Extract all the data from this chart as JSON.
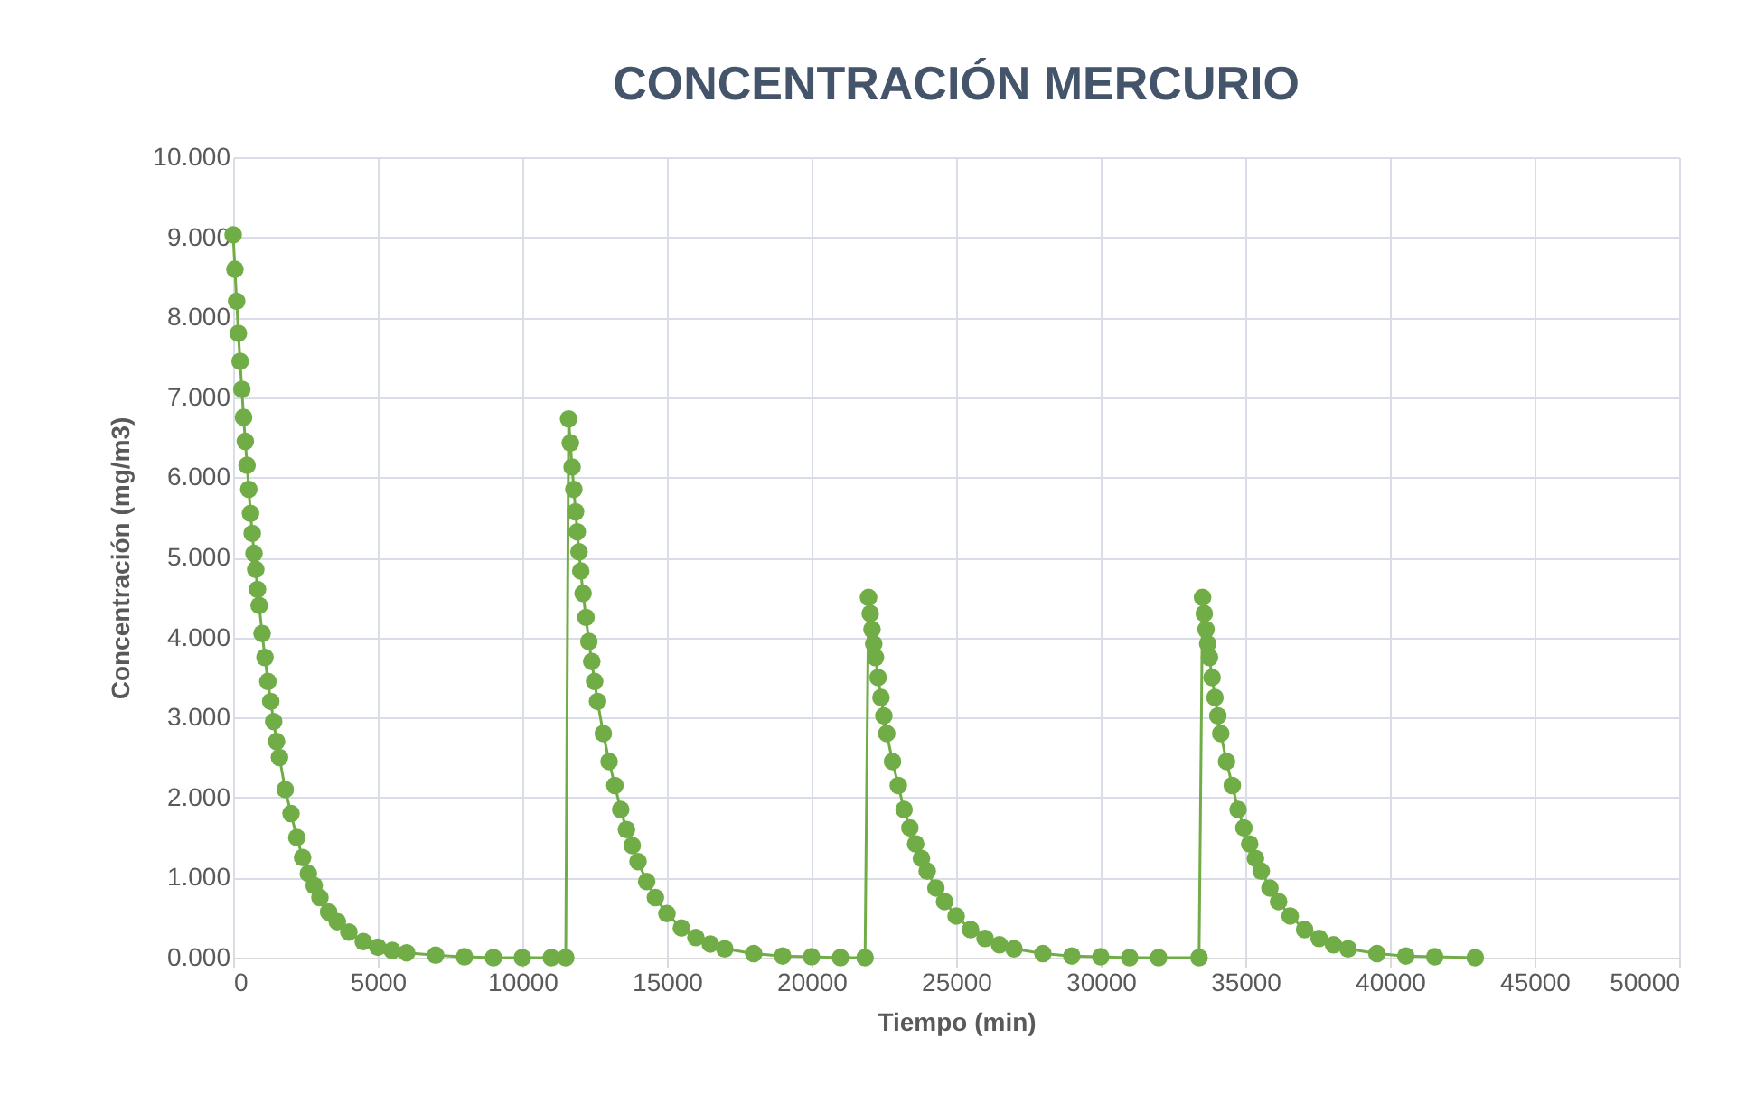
{
  "chart_data": {
    "type": "line",
    "title": "CONCENTRACIÓN MERCURIO",
    "xlabel": "Tiempo (min)",
    "ylabel": "Concentración (mg/m3)",
    "xlim": [
      0,
      50000
    ],
    "xticks": [
      0,
      5000,
      10000,
      15000,
      20000,
      25000,
      30000,
      35000,
      40000,
      45000,
      50000
    ],
    "ylim": [
      0,
      10
    ],
    "yticks": [
      {
        "value": 0,
        "label": "0.000"
      },
      {
        "value": 1,
        "label": "1.000"
      },
      {
        "value": 2,
        "label": "2.000"
      },
      {
        "value": 3,
        "label": "3.000"
      },
      {
        "value": 4,
        "label": "4.000"
      },
      {
        "value": 5,
        "label": "5.000"
      },
      {
        "value": 6,
        "label": "6.000"
      },
      {
        "value": 7,
        "label": "7.000"
      },
      {
        "value": 8,
        "label": "8.000"
      },
      {
        "value": 9,
        "label": "9.000"
      },
      {
        "value": 10,
        "label": "10.000"
      }
    ],
    "grid": true,
    "marker": "circle",
    "line_style": "solid",
    "x": [
      0,
      60,
      120,
      180,
      240,
      300,
      360,
      420,
      480,
      540,
      600,
      660,
      720,
      780,
      840,
      900,
      1000,
      1100,
      1200,
      1300,
      1400,
      1500,
      1600,
      1800,
      2000,
      2200,
      2400,
      2600,
      2800,
      3000,
      3300,
      3600,
      4000,
      4500,
      5000,
      5500,
      6000,
      7000,
      8000,
      9000,
      10000,
      11000,
      11500,
      11600,
      11660,
      11720,
      11780,
      11840,
      11900,
      11960,
      12020,
      12100,
      12200,
      12300,
      12400,
      12500,
      12600,
      12800,
      13000,
      13200,
      13400,
      13600,
      13800,
      14000,
      14300,
      14600,
      15000,
      15500,
      16000,
      16500,
      17000,
      18000,
      19000,
      20000,
      21000,
      21850,
      21970,
      22030,
      22090,
      22150,
      22210,
      22300,
      22400,
      22500,
      22600,
      22800,
      23000,
      23200,
      23400,
      23600,
      23800,
      24000,
      24300,
      24600,
      25000,
      25500,
      26000,
      26500,
      27000,
      28000,
      29000,
      30000,
      31000,
      32000,
      33400,
      33520,
      33580,
      33640,
      33700,
      33760,
      33850,
      33950,
      34050,
      34150,
      34350,
      34550,
      34750,
      34950,
      35150,
      35350,
      35550,
      35850,
      36150,
      36550,
      37050,
      37550,
      38050,
      38550,
      39550,
      40550,
      41550,
      42950
    ],
    "series": [
      {
        "color": "#70ad47",
        "values": [
          9.03,
          8.6,
          8.2,
          7.8,
          7.45,
          7.1,
          6.75,
          6.45,
          6.15,
          5.85,
          5.55,
          5.3,
          5.05,
          4.85,
          4.6,
          4.4,
          4.05,
          3.75,
          3.45,
          3.2,
          2.95,
          2.7,
          2.5,
          2.1,
          1.8,
          1.5,
          1.25,
          1.05,
          0.9,
          0.75,
          0.57,
          0.45,
          0.32,
          0.2,
          0.13,
          0.09,
          0.06,
          0.03,
          0.01,
          0.0,
          0.0,
          0.0,
          0.0,
          6.73,
          6.43,
          6.13,
          5.85,
          5.57,
          5.32,
          5.07,
          4.83,
          4.55,
          4.25,
          3.95,
          3.7,
          3.45,
          3.2,
          2.8,
          2.45,
          2.15,
          1.85,
          1.6,
          1.4,
          1.2,
          0.95,
          0.75,
          0.55,
          0.37,
          0.25,
          0.17,
          0.11,
          0.05,
          0.02,
          0.01,
          0.0,
          0.0,
          4.5,
          4.3,
          4.1,
          3.92,
          3.75,
          3.5,
          3.25,
          3.02,
          2.8,
          2.45,
          2.15,
          1.85,
          1.62,
          1.42,
          1.24,
          1.08,
          0.87,
          0.7,
          0.52,
          0.35,
          0.24,
          0.16,
          0.11,
          0.05,
          0.02,
          0.01,
          0.0,
          0.0,
          0.0,
          4.5,
          4.3,
          4.1,
          3.92,
          3.75,
          3.5,
          3.25,
          3.02,
          2.8,
          2.45,
          2.15,
          1.85,
          1.62,
          1.42,
          1.24,
          1.08,
          0.87,
          0.7,
          0.52,
          0.35,
          0.24,
          0.16,
          0.11,
          0.05,
          0.02,
          0.01,
          0.0
        ]
      }
    ]
  }
}
